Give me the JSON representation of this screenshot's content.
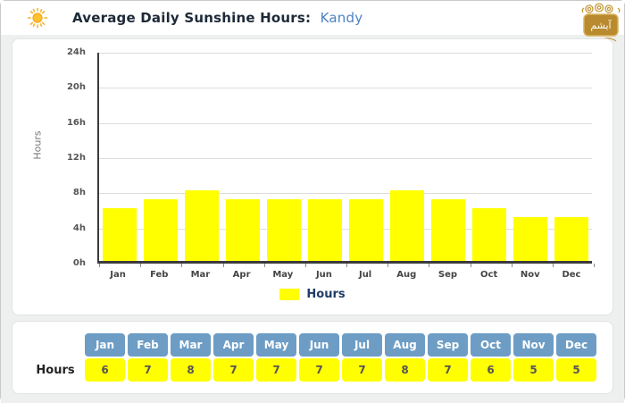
{
  "header": {
    "title": "Average Daily Sunshine Hours:",
    "location": "Kandy",
    "logo_text": "آیشم"
  },
  "chart_data": {
    "type": "bar",
    "categories": [
      "Jan",
      "Feb",
      "Mar",
      "Apr",
      "May",
      "Jun",
      "Jul",
      "Aug",
      "Sep",
      "Oct",
      "Nov",
      "Dec"
    ],
    "values": [
      6,
      7,
      8,
      7,
      7,
      7,
      7,
      8,
      7,
      6,
      5,
      5
    ],
    "title": "",
    "xlabel": "",
    "ylabel": "Hours",
    "ylim": [
      0,
      24
    ],
    "ytick_step": 4,
    "ytick_labels": [
      "0h",
      "4h",
      "8h",
      "12h",
      "16h",
      "20h",
      "24h"
    ],
    "grid": true,
    "bar_color": "#ffff00",
    "legend": {
      "label": "Hours",
      "swatch_color": "#ffff00",
      "position": "bottom-center"
    }
  },
  "table": {
    "row_label": "Hours",
    "columns": [
      "Jan",
      "Feb",
      "Mar",
      "Apr",
      "May",
      "Jun",
      "Jul",
      "Aug",
      "Sep",
      "Oct",
      "Nov",
      "Dec"
    ],
    "values": [
      6,
      7,
      8,
      7,
      7,
      7,
      7,
      8,
      7,
      6,
      5,
      5
    ],
    "header_bg": "#6d9dc5",
    "cell_bg": "#ffff00"
  },
  "colors": {
    "accent_blue": "#4d82c4",
    "bar_yellow": "#ffff00",
    "table_header_blue": "#6d9dc5",
    "axis_dark": "#3b3b3b",
    "gridline": "#dddddd",
    "page_bg": "#eef0ef",
    "logo_gold": "#b98a2e"
  }
}
